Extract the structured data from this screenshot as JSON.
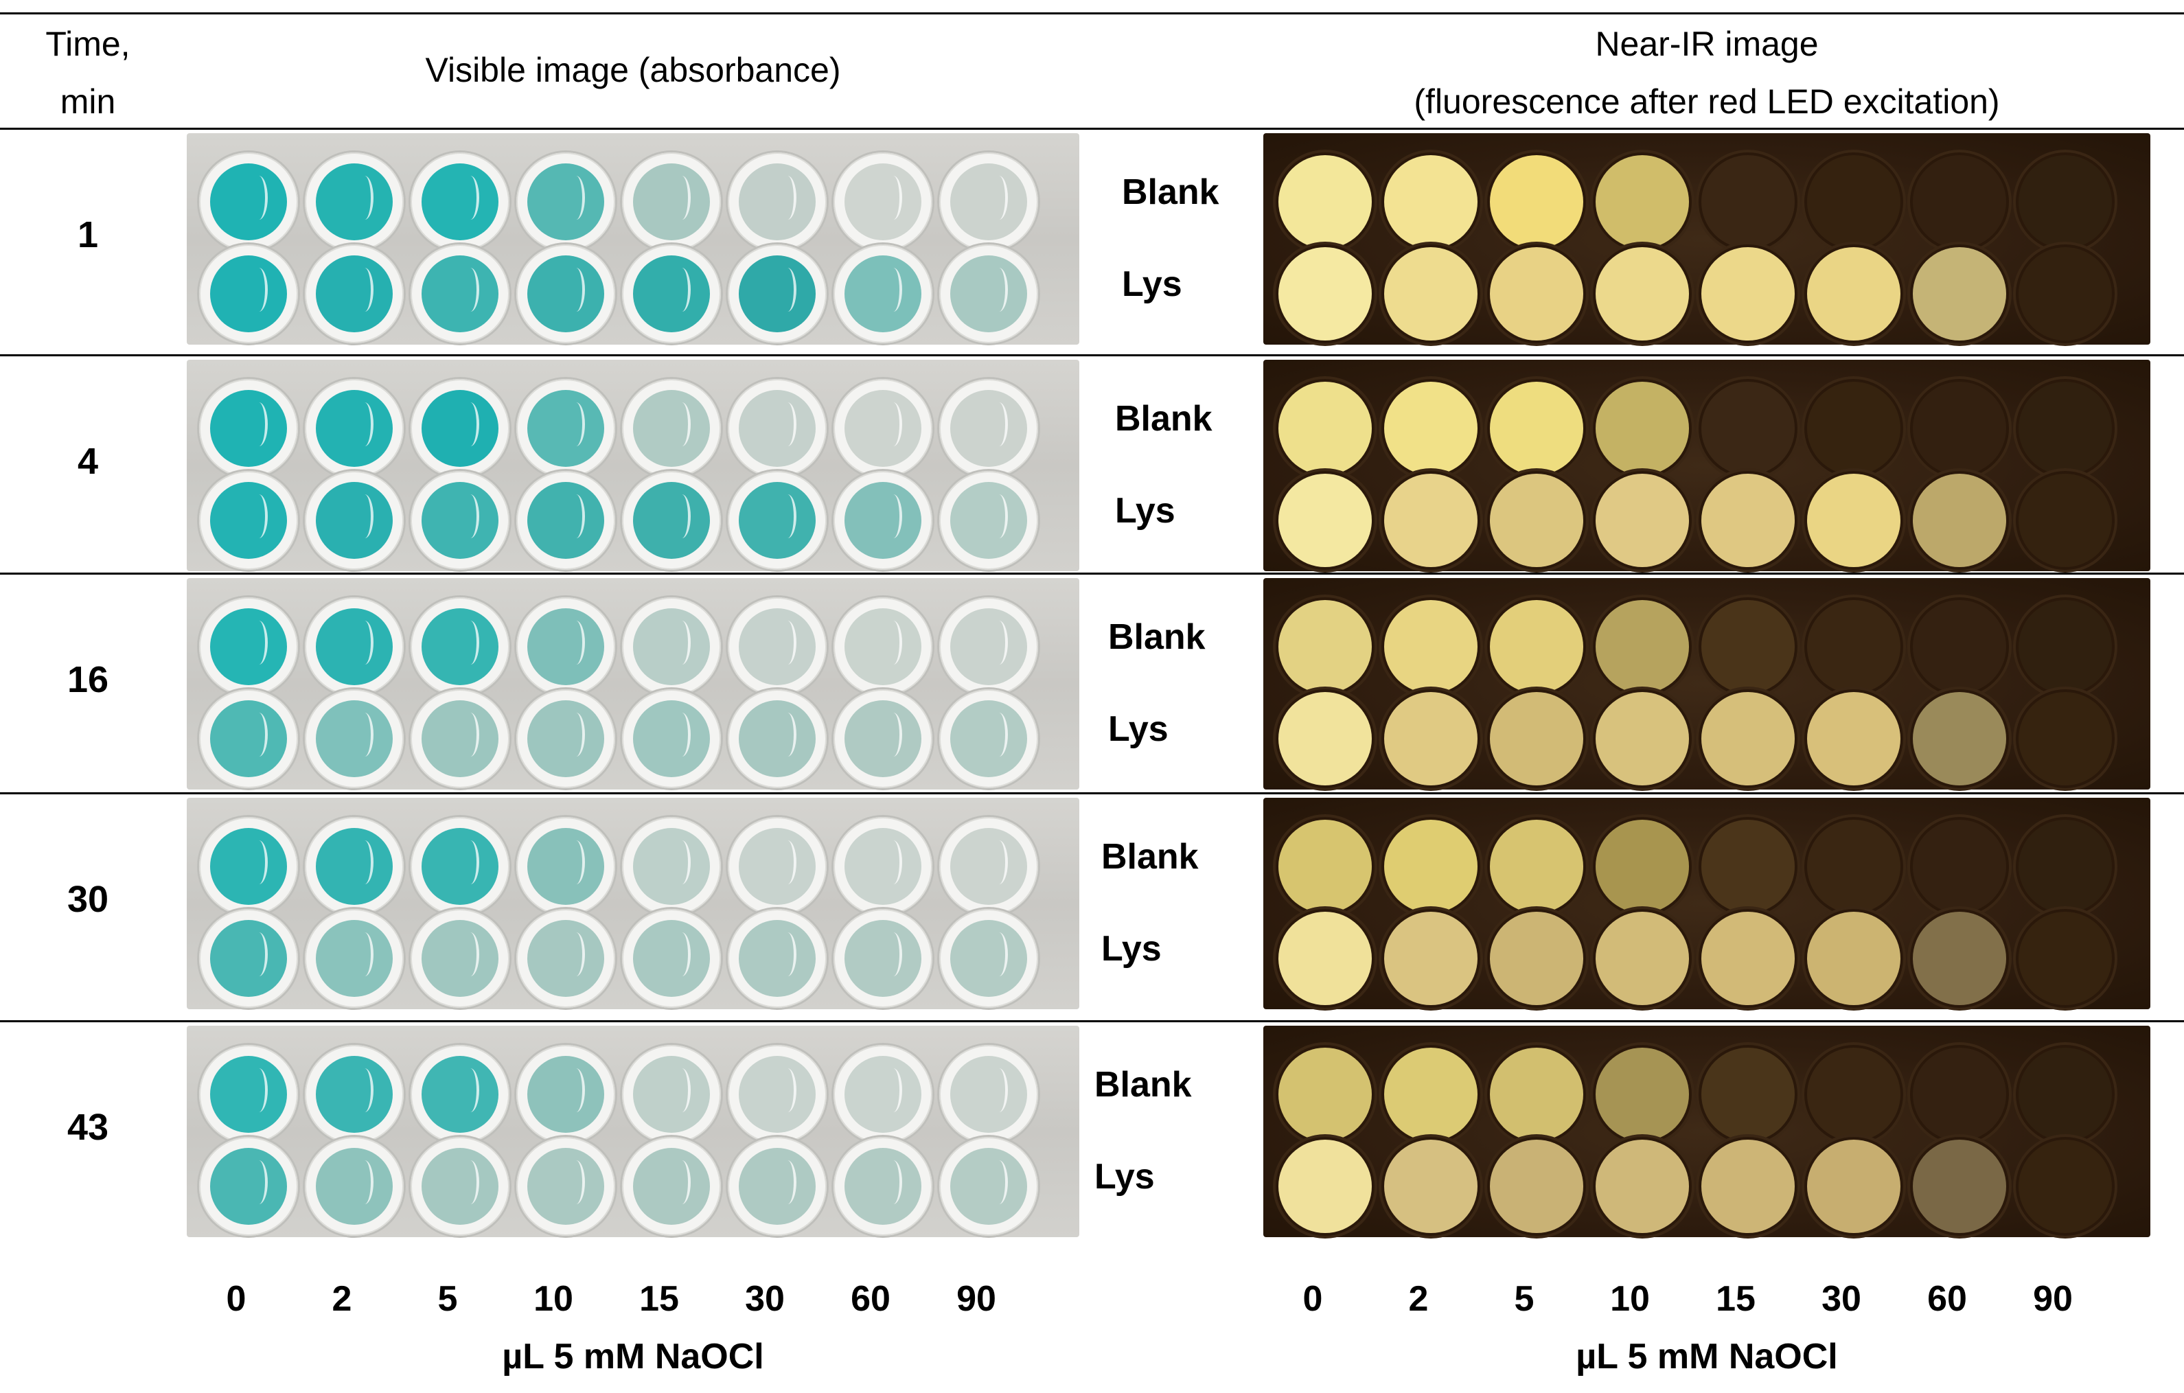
{
  "header": {
    "time_label_line1": "Time,",
    "time_label_line2": "min",
    "visible_title": "Visible image (absorbance)",
    "nir_title_line1": "Near-IR image",
    "nir_title_line2": "(fluorescence after red LED excitation)"
  },
  "rows": [
    {
      "time": "1"
    },
    {
      "time": "4"
    },
    {
      "time": "16"
    },
    {
      "time": "30"
    },
    {
      "time": "43"
    }
  ],
  "row_labels": {
    "blank": "Blank",
    "lys": "Lys"
  },
  "x_ticks": [
    "0",
    "2",
    "5",
    "10",
    "15",
    "30",
    "60",
    "90"
  ],
  "x_axis_label": "µL 5 mM NaOCl",
  "colors": {
    "visible_well_colors": [
      [
        [
          "#1fb3b3",
          "#25b3b1",
          "#24b4b3",
          "#55b8b3",
          "#a8c8c1",
          "#c2cfca",
          "#cfd5d0",
          "#ccd3ce"
        ],
        [
          "#20b2b3",
          "#26b0b0",
          "#3db4b1",
          "#3cb1ae",
          "#32aeab",
          "#2fa9a8",
          "#7cc0ba",
          "#a8c9c2"
        ]
      ],
      [
        [
          "#1fb3b3",
          "#23b2b2",
          "#1fb0b1",
          "#58b9b4",
          "#b0cbc4",
          "#c5d1cc",
          "#cdd4cf",
          "#ccd3ce"
        ],
        [
          "#23b3b3",
          "#2ab0b0",
          "#3fb4b1",
          "#41b2ae",
          "#3eb0ac",
          "#40b2ae",
          "#83c0ba",
          "#b3cdc6"
        ]
      ],
      [
        [
          "#25b5b4",
          "#2cb3b2",
          "#35b5b2",
          "#7ebfb9",
          "#b8cec8",
          "#c6d2cd",
          "#cad4ce",
          "#cad3ce"
        ],
        [
          "#4fb9b4",
          "#7fc1bb",
          "#9cc6bf",
          "#9dc6bf",
          "#9fc7c0",
          "#a7c8c1",
          "#afcac3",
          "#b2ccc5"
        ]
      ],
      [
        [
          "#2cb5b3",
          "#33b4b2",
          "#38b5b2",
          "#88c1ba",
          "#bdd0ca",
          "#c8d3ce",
          "#cad4cf",
          "#ccd4cf"
        ],
        [
          "#49b7b3",
          "#8ac3bc",
          "#a0c7c0",
          "#a6c8c1",
          "#a9c9c2",
          "#adcac3",
          "#b1cbc4",
          "#b3ccc5"
        ]
      ],
      [
        [
          "#30b6b4",
          "#3ab5b3",
          "#40b6b3",
          "#8ec2bb",
          "#bfd0ca",
          "#c8d3ce",
          "#cad4cf",
          "#cbd4cf"
        ],
        [
          "#4ab7b3",
          "#8ec3bc",
          "#a5c8c1",
          "#aac9c2",
          "#acc9c2",
          "#aecac3",
          "#b1cbc4",
          "#b4ccc5"
        ]
      ]
    ],
    "nir_well_colors": [
      [
        [
          "#f3e79a",
          "#f3e393",
          "#f2dc79",
          "#d0bd6a",
          "#3a2614",
          "#35220f",
          "#332010",
          "#30200f"
        ],
        [
          "#f5e9a2",
          "#eedc8f",
          "#e8d285",
          "#ecd98c",
          "#ecd88a",
          "#ead585",
          "#c5b476",
          "#33210f"
        ]
      ],
      [
        [
          "#eee08c",
          "#f1e188",
          "#eedd7f",
          "#c4b264",
          "#3b2715",
          "#36230f",
          "#332010",
          "#30200f"
        ],
        [
          "#f4e8a1",
          "#e8d38b",
          "#dcc67f",
          "#e0c985",
          "#dfc882",
          "#ead584",
          "#bca86a",
          "#34220f"
        ]
      ],
      [
        [
          "#e3d283",
          "#e8d582",
          "#e3cf7a",
          "#b6a35e",
          "#4a3419",
          "#3a2612",
          "#342111",
          "#30200f"
        ],
        [
          "#f1e39c",
          "#e0ca83",
          "#d2bb76",
          "#d8c27d",
          "#d6bf7a",
          "#d8c07a",
          "#9a8a5a",
          "#36230f"
        ]
      ],
      [
        [
          "#d7c56f",
          "#dfcd71",
          "#d7c470",
          "#a8954f",
          "#4b351a",
          "#3a2612",
          "#342111",
          "#30200f"
        ],
        [
          "#f0e19a",
          "#dac481",
          "#ccb574",
          "#d2bb78",
          "#d2ba77",
          "#ccb471",
          "#82704a",
          "#36230f"
        ]
      ],
      [
        [
          "#d4c270",
          "#dccb74",
          "#d2bf6f",
          "#a69454",
          "#4a351a",
          "#3a2612",
          "#342111",
          "#30200f"
        ],
        [
          "#f0e19c",
          "#d6c081",
          "#c9b275",
          "#cfb879",
          "#cdb576",
          "#c7ae70",
          "#7a6846",
          "#36230f"
        ]
      ]
    ]
  }
}
